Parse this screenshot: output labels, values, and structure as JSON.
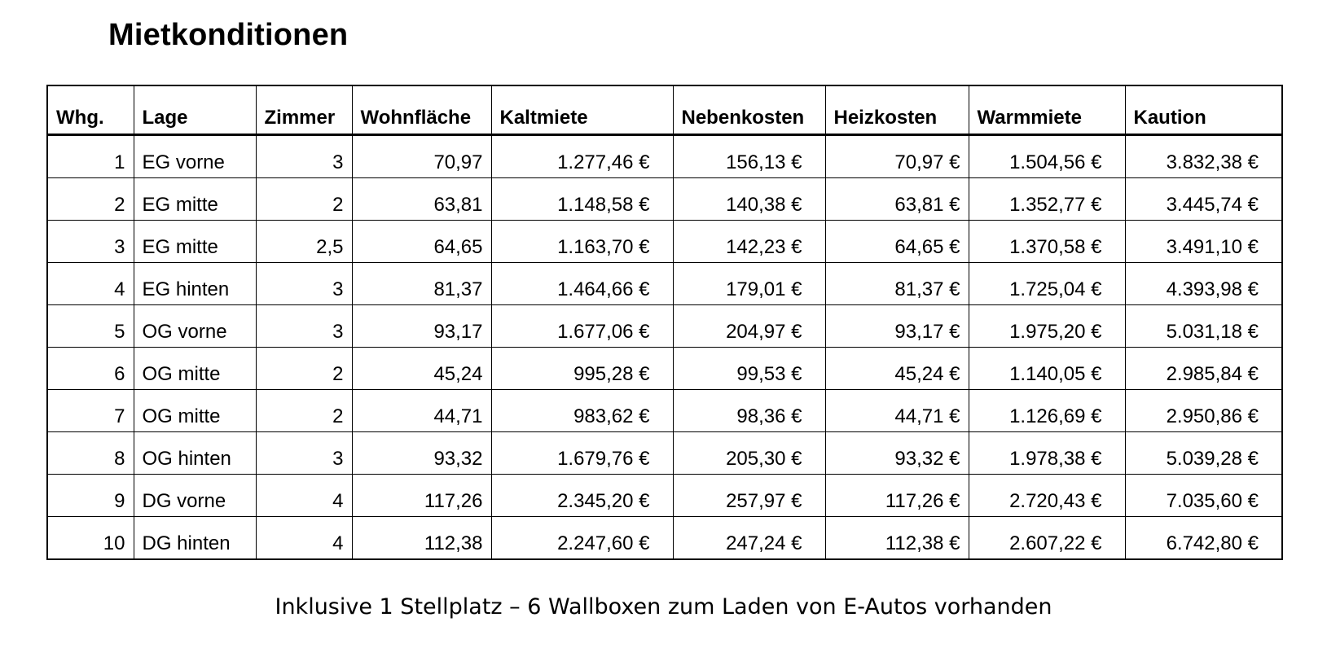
{
  "title": "Mietkonditionen",
  "table": {
    "headers": [
      "Whg.",
      "Lage",
      "Zimmer",
      "Wohnfläche",
      "Kaltmiete",
      "Nebenkosten",
      "Heizkosten",
      "Warmmiete",
      "Kaution"
    ],
    "rows": [
      [
        "1",
        "EG vorne",
        "3",
        "70,97",
        "1.277,46 €",
        "156,13 €",
        "70,97 €",
        "1.504,56 €",
        "3.832,38 €"
      ],
      [
        "2",
        "EG mitte",
        "2",
        "63,81",
        "1.148,58 €",
        "140,38 €",
        "63,81 €",
        "1.352,77 €",
        "3.445,74 €"
      ],
      [
        "3",
        "EG mitte",
        "2,5",
        "64,65",
        "1.163,70 €",
        "142,23 €",
        "64,65 €",
        "1.370,58 €",
        "3.491,10 €"
      ],
      [
        "4",
        "EG hinten",
        "3",
        "81,37",
        "1.464,66 €",
        "179,01 €",
        "81,37 €",
        "1.725,04 €",
        "4.393,98 €"
      ],
      [
        "5",
        "OG vorne",
        "3",
        "93,17",
        "1.677,06 €",
        "204,97 €",
        "93,17 €",
        "1.975,20 €",
        "5.031,18 €"
      ],
      [
        "6",
        "OG mitte",
        "2",
        "45,24",
        "995,28 €",
        "99,53 €",
        "45,24 €",
        "1.140,05 €",
        "2.985,84 €"
      ],
      [
        "7",
        "OG mitte",
        "2",
        "44,71",
        "983,62 €",
        "98,36 €",
        "44,71 €",
        "1.126,69 €",
        "2.950,86 €"
      ],
      [
        "8",
        "OG hinten",
        "3",
        "93,32",
        "1.679,76 €",
        "205,30 €",
        "93,32 €",
        "1.978,38 €",
        "5.039,28 €"
      ],
      [
        "9",
        "DG vorne",
        "4",
        "117,26",
        "2.345,20 €",
        "257,97 €",
        "117,26 €",
        "2.720,43 €",
        "7.035,60 €"
      ],
      [
        "10",
        "DG hinten",
        "4",
        "112,38",
        "2.247,60 €",
        "247,24 €",
        "112,38 €",
        "2.607,22 €",
        "6.742,80 €"
      ]
    ]
  },
  "footnote": "Inklusive 1 Stellplatz – 6 Wallboxen zum Laden von E-Autos vorhanden"
}
